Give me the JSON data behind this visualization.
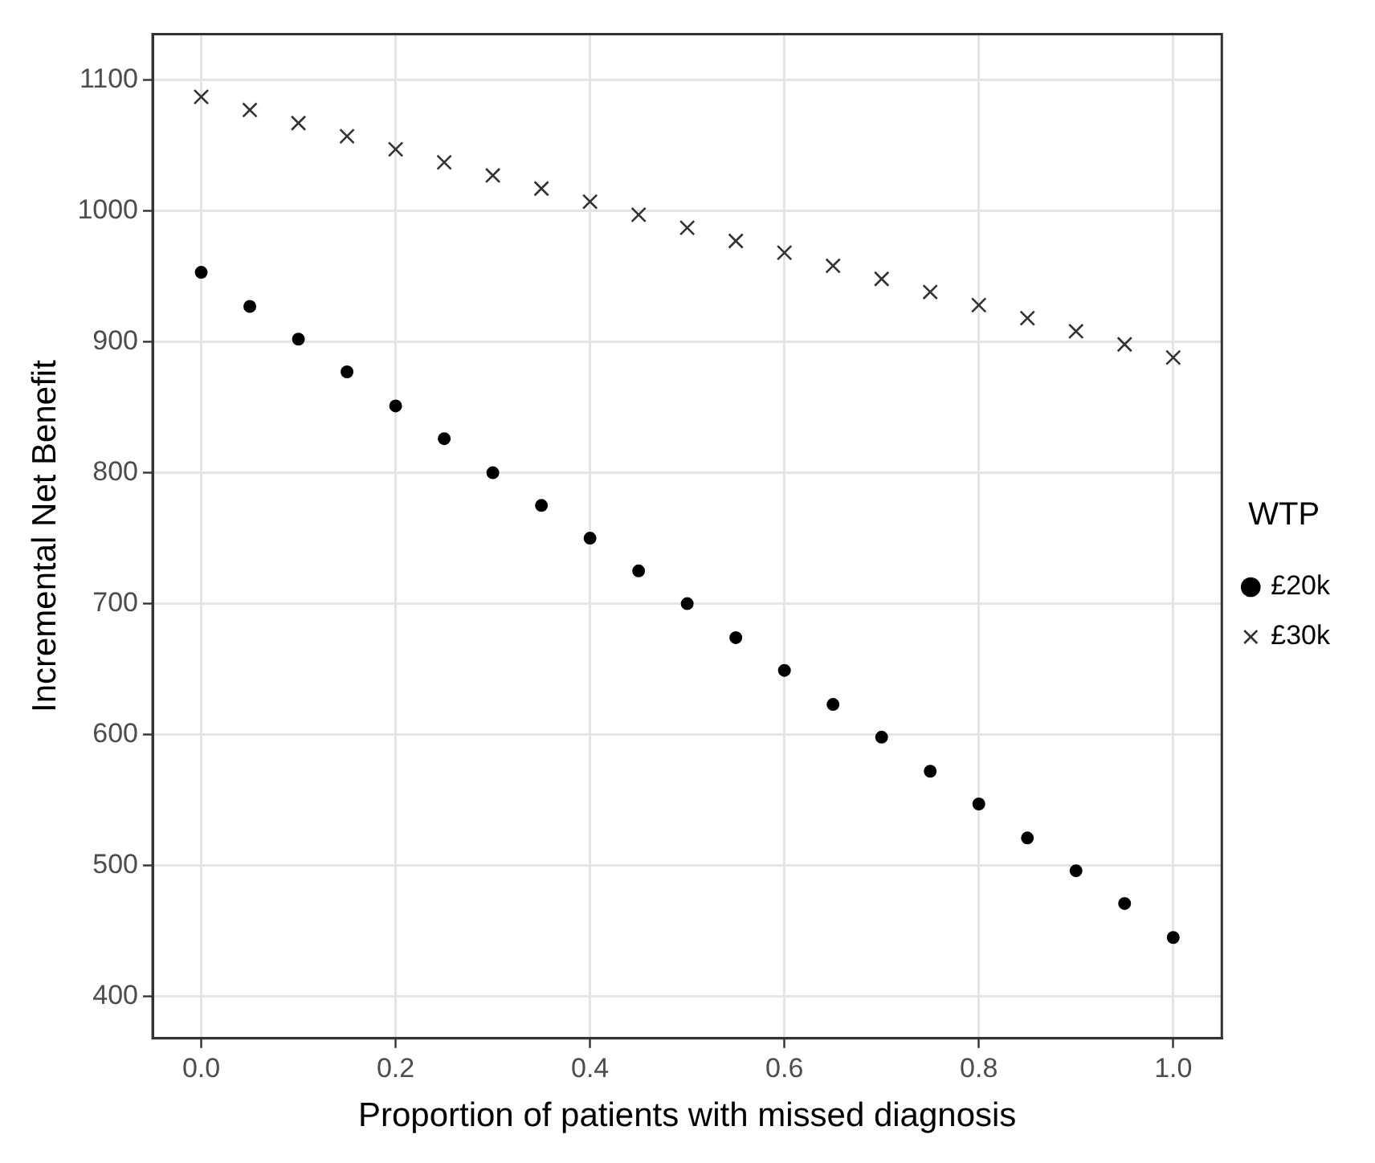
{
  "chart_data": {
    "type": "scatter",
    "xlabel": "Proportion of patients with missed diagnosis",
    "ylabel": "Incremental Net Benefit",
    "legend_title": "WTP",
    "legend": "right",
    "grid": true,
    "x": [
      0,
      0.05,
      0.1,
      0.15,
      0.2,
      0.25,
      0.3,
      0.35,
      0.4,
      0.45,
      0.5,
      0.55,
      0.6,
      0.65,
      0.7,
      0.75,
      0.8,
      0.85,
      0.9,
      0.95,
      1.0
    ],
    "xlim": [
      -0.05,
      1.05
    ],
    "xticks": [
      {
        "value": 0,
        "label": "0.0"
      },
      0.2,
      0.4,
      0.6,
      0.8,
      {
        "value": 1,
        "label": "1.0"
      }
    ],
    "ylim": [
      368,
      1135
    ],
    "yticks": [
      400,
      500,
      600,
      700,
      800,
      900,
      1000,
      1100
    ],
    "series": [
      {
        "name": "£20k",
        "color": "#000000",
        "marker": "circle",
        "values": [
          953,
          927,
          902,
          877,
          851,
          826,
          800,
          775,
          750,
          725,
          700,
          674,
          649,
          623,
          598,
          572,
          547,
          521,
          496,
          471,
          445
        ]
      },
      {
        "name": "£30k",
        "color": "#333333",
        "marker": "cross",
        "values": [
          1087,
          1077,
          1067,
          1057,
          1047,
          1037,
          1027,
          1017,
          1007,
          997,
          987,
          977,
          968,
          958,
          948,
          938,
          928,
          918,
          908,
          898,
          888
        ]
      }
    ]
  }
}
